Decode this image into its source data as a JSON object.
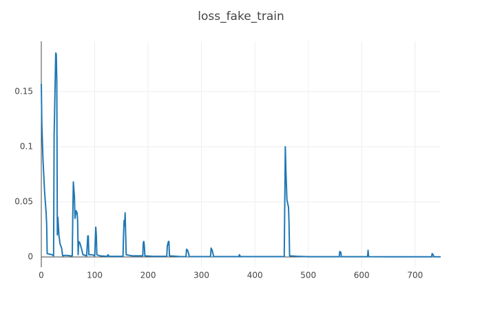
{
  "chart_data": {
    "type": "line",
    "title": "loss_fake_train",
    "x": [
      0,
      1,
      3,
      6,
      9,
      10,
      11,
      20,
      23,
      24,
      26,
      27,
      28,
      29,
      30,
      31,
      33,
      35,
      38,
      40,
      45,
      55,
      58,
      59,
      60,
      62,
      63,
      65,
      67,
      68,
      69,
      70,
      72,
      75,
      78,
      85,
      87,
      88,
      89,
      95,
      100,
      102,
      103,
      104,
      110,
      123,
      125,
      127,
      140,
      153,
      154,
      155,
      156,
      157,
      158,
      159,
      170,
      190,
      191,
      192,
      193,
      194,
      210,
      235,
      236,
      238,
      239,
      240,
      260,
      271,
      272,
      274,
      276,
      277,
      310,
      317,
      318,
      320,
      322,
      323,
      370,
      371,
      373,
      455,
      456,
      457,
      458,
      460,
      463,
      464,
      465,
      480,
      500,
      558,
      559,
      561,
      562,
      611,
      612,
      613,
      650,
      731,
      732,
      734,
      735,
      748
    ],
    "series": [
      {
        "color": "#1f77b4",
        "values": [
          0.157,
          0.12,
          0.09,
          0.06,
          0.04,
          0.03,
          0.003,
          0.002,
          0.001,
          0.11,
          0.16,
          0.185,
          0.184,
          0.16,
          0.02,
          0.036,
          0.02,
          0.012,
          0.008,
          0.001,
          0.0015,
          0.001,
          0.001,
          0.04,
          0.068,
          0.055,
          0.035,
          0.042,
          0.04,
          0.033,
          0.002,
          0.014,
          0.013,
          0.008,
          0.002,
          0.001,
          0.019,
          0.019,
          0.002,
          0.002,
          0.001,
          0.027,
          0.02,
          0.002,
          0.001,
          0.0005,
          0.002,
          0.0005,
          0.0005,
          0.0005,
          0.02,
          0.033,
          0.028,
          0.04,
          0.02,
          0.002,
          0.001,
          0.001,
          0.013,
          0.014,
          0.01,
          0.001,
          0.0005,
          0.0005,
          0.01,
          0.014,
          0.014,
          0.001,
          0.0003,
          0.0003,
          0.007,
          0.006,
          0.003,
          0.0003,
          0.0003,
          0.0003,
          0.008,
          0.006,
          0.002,
          0.0003,
          0.0003,
          0.002,
          0.0003,
          0.0003,
          0.05,
          0.1,
          0.08,
          0.052,
          0.045,
          0.03,
          0.001,
          0.0005,
          0.0002,
          0.0002,
          0.005,
          0.004,
          0.0002,
          0.0002,
          0.006,
          0.0002,
          0.0001,
          0.0001,
          0.003,
          0.002,
          0.0001,
          0.0001
        ]
      }
    ],
    "xlim": [
      0,
      748
    ],
    "xticks": [
      0,
      100,
      200,
      300,
      400,
      500,
      600,
      700
    ],
    "ylim": [
      -0.0094,
      0.1956
    ],
    "yticks": [
      0,
      0.05,
      0.1,
      0.15
    ],
    "grid": true
  }
}
